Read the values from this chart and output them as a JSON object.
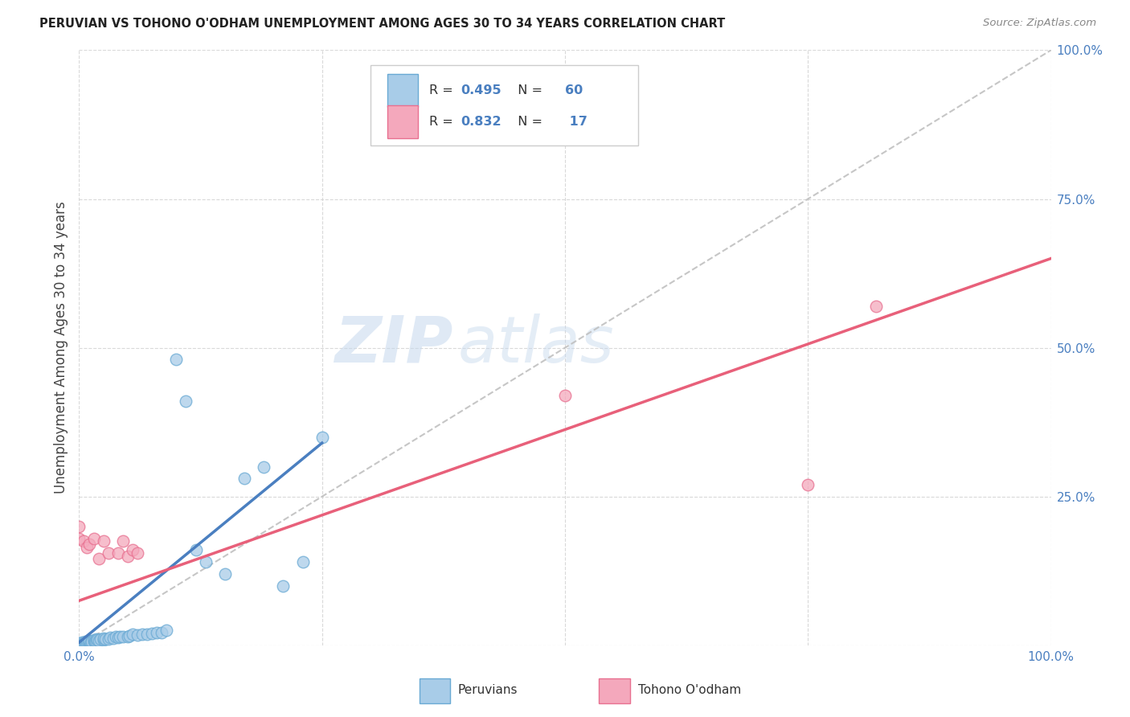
{
  "title": "PERUVIAN VS TOHONO O'ODHAM UNEMPLOYMENT AMONG AGES 30 TO 34 YEARS CORRELATION CHART",
  "source": "Source: ZipAtlas.com",
  "ylabel": "Unemployment Among Ages 30 to 34 years",
  "xlim": [
    0,
    1
  ],
  "ylim": [
    0,
    1
  ],
  "xticks": [
    0.0,
    0.25,
    0.5,
    0.75,
    1.0
  ],
  "yticks": [
    0.0,
    0.25,
    0.5,
    0.75,
    1.0
  ],
  "xticklabels": [
    "0.0%",
    "",
    "",
    "",
    "100.0%"
  ],
  "yticklabels": [
    "",
    "25.0%",
    "50.0%",
    "75.0%",
    "100.0%"
  ],
  "peruvian_color": "#a8cce8",
  "tohono_color": "#f4a8bc",
  "peruvian_edge_color": "#6aaad4",
  "tohono_edge_color": "#e87090",
  "peruvian_line_color": "#4a7fc0",
  "tohono_line_color": "#e8607a",
  "diagonal_color": "#c0c0c0",
  "watermark_zip": "ZIP",
  "watermark_atlas": "atlas",
  "legend_R_peruvian": "0.495",
  "legend_N_peruvian": "60",
  "legend_R_tohono": "0.832",
  "legend_N_tohono": " 17",
  "peruvian_x": [
    0.0,
    0.0,
    0.0,
    0.0,
    0.0,
    0.001,
    0.002,
    0.003,
    0.003,
    0.004,
    0.005,
    0.005,
    0.006,
    0.006,
    0.007,
    0.008,
    0.009,
    0.01,
    0.01,
    0.01,
    0.012,
    0.013,
    0.015,
    0.015,
    0.016,
    0.017,
    0.018,
    0.019,
    0.02,
    0.022,
    0.025,
    0.025,
    0.027,
    0.03,
    0.032,
    0.035,
    0.038,
    0.04,
    0.042,
    0.045,
    0.05,
    0.052,
    0.055,
    0.06,
    0.065,
    0.07,
    0.075,
    0.08,
    0.085,
    0.09,
    0.1,
    0.11,
    0.12,
    0.13,
    0.15,
    0.17,
    0.19,
    0.21,
    0.23,
    0.25
  ],
  "peruvian_y": [
    0.0,
    0.001,
    0.002,
    0.003,
    0.004,
    0.001,
    0.002,
    0.003,
    0.005,
    0.003,
    0.002,
    0.004,
    0.003,
    0.006,
    0.004,
    0.005,
    0.007,
    0.004,
    0.006,
    0.008,
    0.005,
    0.007,
    0.006,
    0.009,
    0.007,
    0.008,
    0.01,
    0.009,
    0.008,
    0.01,
    0.009,
    0.012,
    0.011,
    0.01,
    0.013,
    0.012,
    0.014,
    0.013,
    0.015,
    0.014,
    0.015,
    0.016,
    0.018,
    0.017,
    0.019,
    0.018,
    0.02,
    0.022,
    0.021,
    0.025,
    0.48,
    0.41,
    0.16,
    0.14,
    0.12,
    0.28,
    0.3,
    0.1,
    0.14,
    0.35
  ],
  "tohono_x": [
    0.0,
    0.0,
    0.005,
    0.008,
    0.01,
    0.015,
    0.02,
    0.025,
    0.03,
    0.04,
    0.045,
    0.05,
    0.055,
    0.06,
    0.5,
    0.75,
    0.82
  ],
  "tohono_y": [
    0.18,
    0.2,
    0.175,
    0.165,
    0.17,
    0.18,
    0.145,
    0.175,
    0.155,
    0.155,
    0.175,
    0.15,
    0.16,
    0.155,
    0.42,
    0.27,
    0.57
  ],
  "peru_trend_x": [
    0.0,
    0.25
  ],
  "peru_trend_y": [
    0.005,
    0.34
  ],
  "tohono_trend_x": [
    0.0,
    1.0
  ],
  "tohono_trend_y": [
    0.075,
    0.65
  ]
}
